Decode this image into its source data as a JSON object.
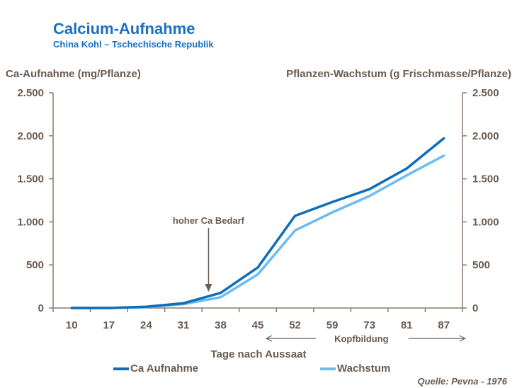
{
  "title": "Calcium-Aufnahme",
  "subtitle": "China Kohl – Tschechische Republik",
  "source": "Quelle: Pevna - 1976",
  "chart_data": {
    "type": "line",
    "title": "Calcium-Aufnahme",
    "subtitle": "China Kohl – Tschechische Republik",
    "ylabel_left": "Ca-Aufnahme (mg/Pflanze)",
    "ylabel_right": "Pflanzen-Wachstum (g Frischmasse/Pflanze)",
    "xlabel": "Tage nach Aussaat",
    "categories": [
      "10",
      "17",
      "24",
      "31",
      "38",
      "45",
      "52",
      "59",
      "73",
      "81",
      "87"
    ],
    "ylim": [
      0,
      2500
    ],
    "yticks": [
      0,
      500,
      1000,
      1500,
      2000,
      2500
    ],
    "ytick_labels": [
      "0",
      "500",
      "1.000",
      "1.500",
      "2.000",
      "2.500"
    ],
    "grid": false,
    "legend_position": "bottom",
    "series": [
      {
        "name": "Ca Aufnahme",
        "color": "#0e6eb8",
        "values": [
          0,
          0,
          15,
          55,
          175,
          470,
          1070,
          1230,
          1380,
          1620,
          1970
        ]
      },
      {
        "name": "Wachstum",
        "color": "#6cbcf3",
        "values": [
          0,
          0,
          10,
          45,
          125,
          390,
          900,
          1110,
          1300,
          1540,
          1770
        ]
      }
    ],
    "annotations": {
      "high_demand": {
        "text": "hoher Ca Bedarf",
        "at_category": "38"
      },
      "head_formation": {
        "text": "Kopfbildung",
        "from_category": "45",
        "to_category": "87"
      }
    }
  }
}
